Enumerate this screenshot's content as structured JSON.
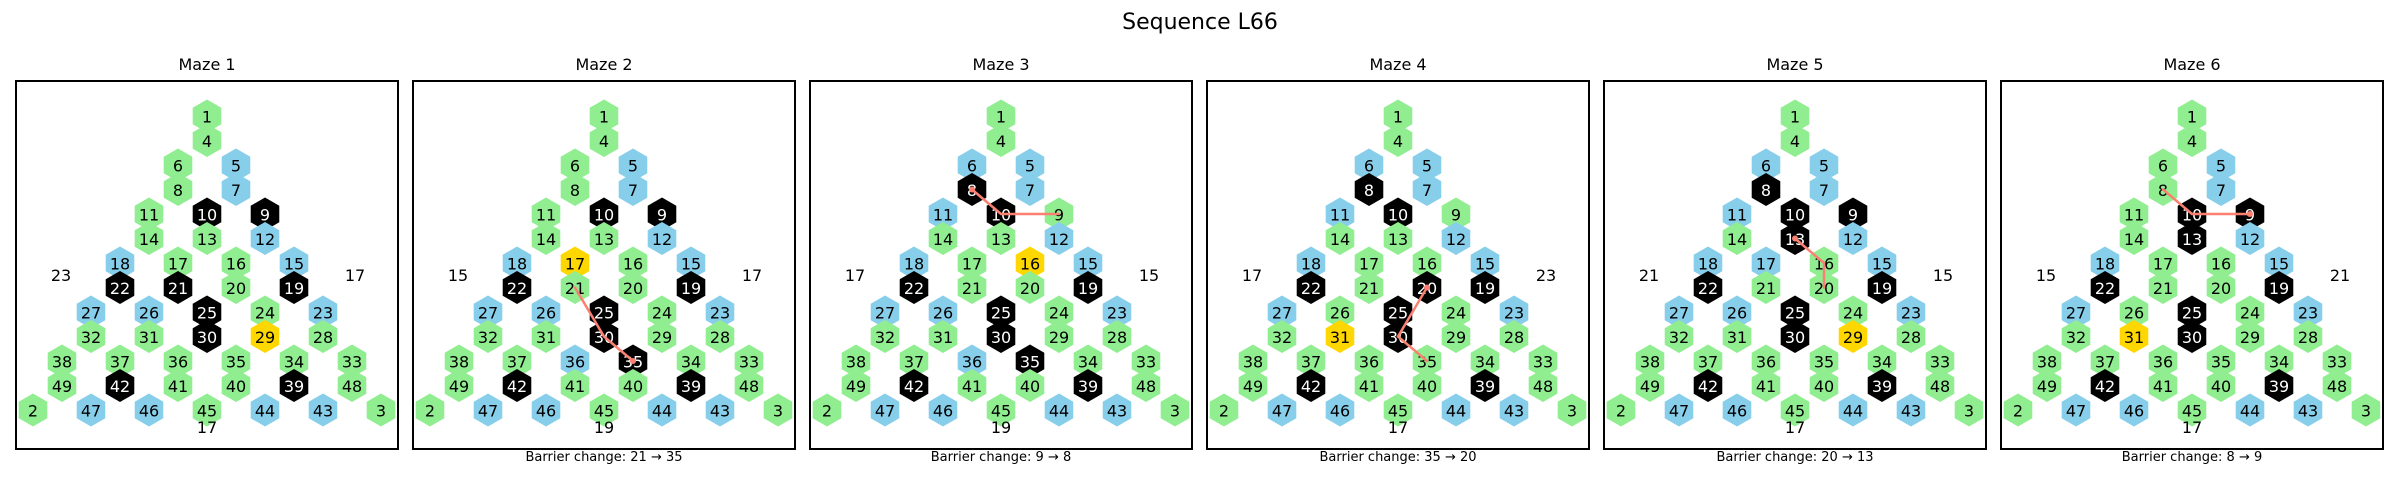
{
  "title": "Sequence L66",
  "colors": {
    "green": "#90ee90",
    "blue": "#87ceeb",
    "black": "#000000",
    "yellow": "#ffd700",
    "path": "#fa8072"
  },
  "rows": [
    [
      1
    ],
    [
      4
    ],
    [
      6,
      5
    ],
    [
      8,
      7
    ],
    [
      11,
      10,
      9
    ],
    [
      14,
      13,
      12
    ],
    [
      18,
      17,
      16,
      15
    ],
    [
      22,
      21,
      20,
      19
    ],
    [
      27,
      26,
      25,
      24,
      23
    ],
    [
      32,
      31,
      30,
      29,
      28
    ],
    [
      38,
      37,
      36,
      35,
      34,
      33
    ],
    [
      49,
      42,
      41,
      40,
      39,
      48
    ],
    [
      2,
      47,
      46,
      45,
      44,
      43,
      3
    ]
  ],
  "base_types": {
    "1": "green",
    "2": "green",
    "3": "green",
    "4": "green",
    "5": "blue",
    "6": "green",
    "7": "blue",
    "8": "green",
    "9": "black",
    "10": "black",
    "11": "green",
    "12": "blue",
    "13": "green",
    "14": "green",
    "15": "blue",
    "16": "green",
    "17": "green",
    "18": "blue",
    "19": "black",
    "20": "green",
    "21": "black",
    "22": "black",
    "23": "blue",
    "24": "green",
    "25": "black",
    "26": "blue",
    "27": "blue",
    "28": "green",
    "29": "green",
    "30": "black",
    "31": "green",
    "32": "green",
    "33": "green",
    "34": "green",
    "35": "green",
    "36": "green",
    "37": "green",
    "38": "green",
    "39": "black",
    "40": "green",
    "41": "green",
    "42": "black",
    "43": "blue",
    "44": "blue",
    "45": "green",
    "46": "blue",
    "47": "blue",
    "48": "green",
    "49": "green"
  },
  "mazes": [
    {
      "title": "Maze 1",
      "left": "23",
      "right": "17",
      "bottom": "17",
      "caption": "",
      "overrides": {
        "29": "yellow"
      },
      "path": []
    },
    {
      "title": "Maze 2",
      "left": "15",
      "right": "17",
      "bottom": "19",
      "caption": "Barrier change: 21 → 35",
      "overrides": {
        "17": "yellow",
        "21": "green",
        "35": "black",
        "36": "blue"
      },
      "path": [
        21,
        30,
        35
      ]
    },
    {
      "title": "Maze 3",
      "left": "17",
      "right": "15",
      "bottom": "19",
      "caption": "Barrier change: 9 → 8",
      "overrides": {
        "16": "yellow",
        "8": "black",
        "9": "green",
        "11": "blue",
        "6": "blue",
        "35": "black",
        "36": "blue",
        "21": "green",
        "17": "green"
      },
      "path": [
        9,
        10,
        8
      ]
    },
    {
      "title": "Maze 4",
      "left": "17",
      "right": "23",
      "bottom": "17",
      "caption": "Barrier change: 35 → 20",
      "overrides": {
        "31": "yellow",
        "8": "black",
        "9": "green",
        "11": "blue",
        "6": "blue",
        "20": "black",
        "35": "green",
        "21": "green",
        "26": "green",
        "17": "green"
      },
      "path": [
        35,
        30,
        20
      ]
    },
    {
      "title": "Maze 5",
      "left": "21",
      "right": "15",
      "bottom": "17",
      "caption": "Barrier change: 20 → 13",
      "overrides": {
        "29": "yellow",
        "8": "black",
        "11": "blue",
        "6": "blue",
        "13": "black",
        "17": "blue",
        "21": "green",
        "24": "green"
      },
      "path": [
        20,
        16,
        13
      ]
    },
    {
      "title": "Maze 6",
      "left": "15",
      "right": "21",
      "bottom": "17",
      "caption": "Barrier change: 8 → 9",
      "overrides": {
        "31": "yellow",
        "13": "black",
        "21": "green",
        "26": "green"
      },
      "path": [
        8,
        10,
        9
      ]
    }
  ]
}
